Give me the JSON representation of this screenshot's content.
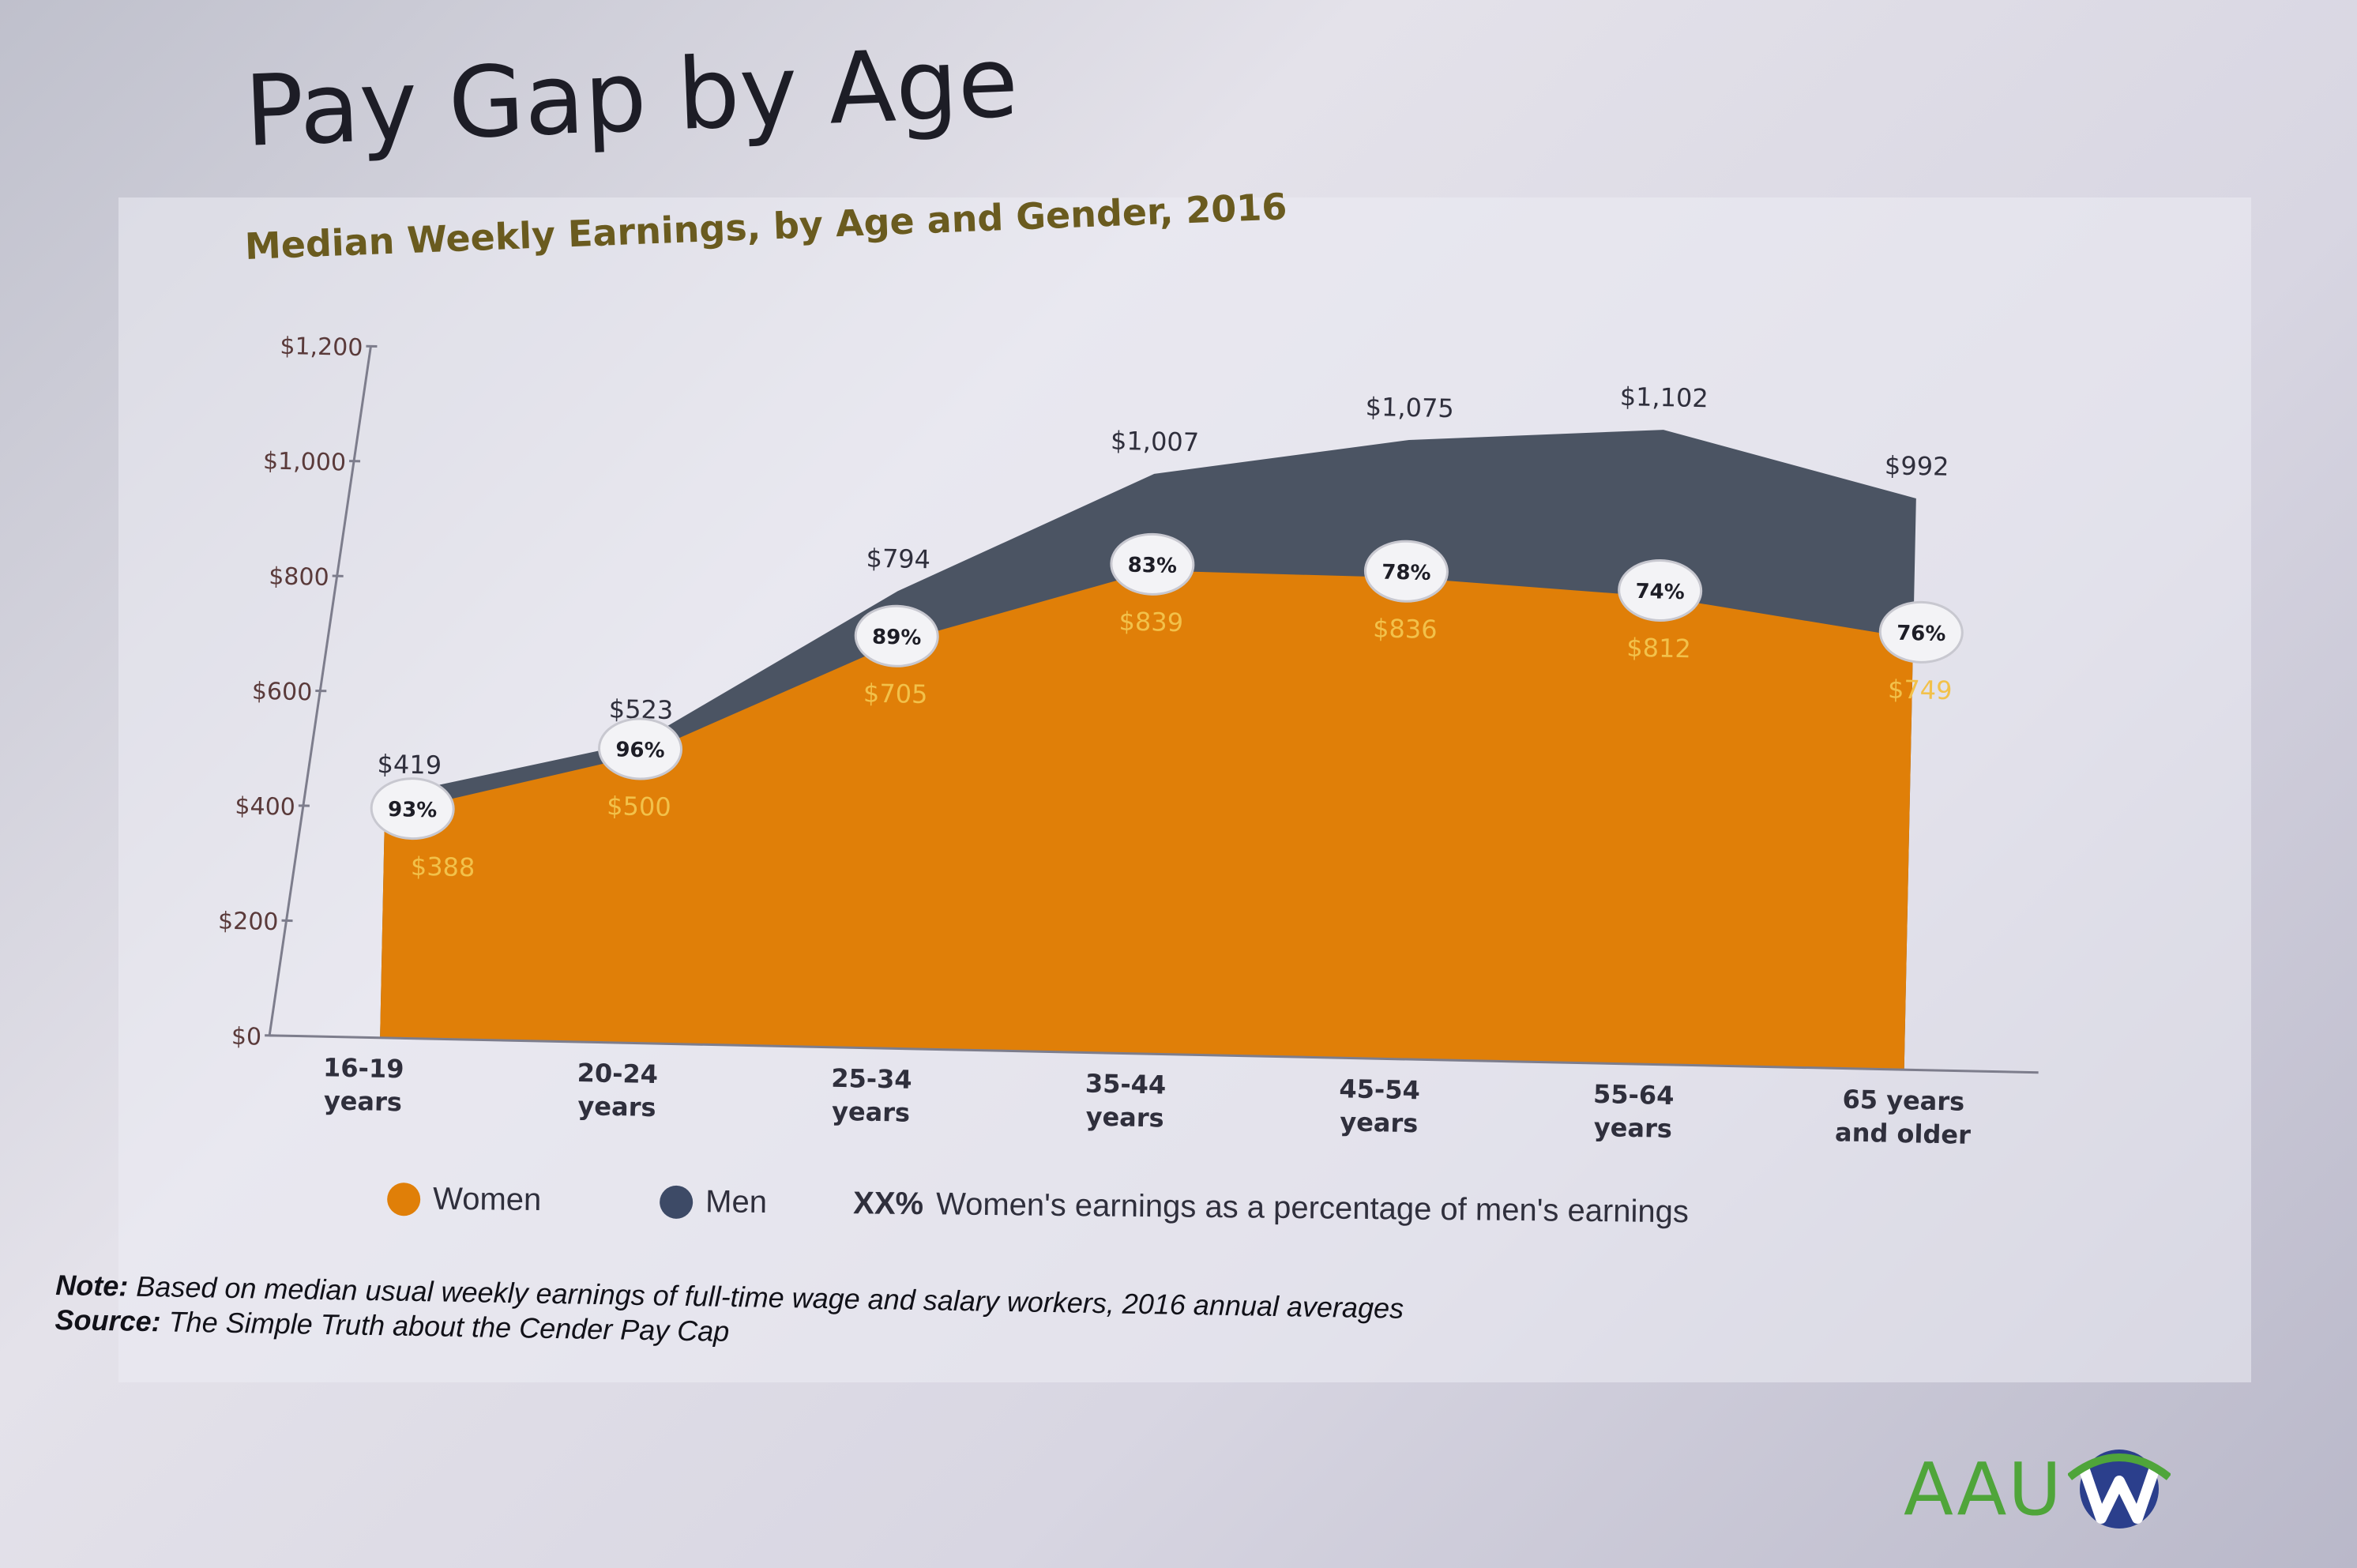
{
  "slide": {
    "title": "Pay Gap by Age",
    "logo_text": "AAU",
    "logo_icon": "aauw-w-logo-icon"
  },
  "legend": {
    "women_label": "Women",
    "men_label": "Men",
    "ratio_key": "XX%",
    "ratio_desc": "Women's earnings as a percentage of men's earnings"
  },
  "note": {
    "note_label": "Note:",
    "note_text": "Based on median usual weekly earnings of full-time wage and salary workers, 2016 annual averages",
    "source_label": "Source:",
    "source_text": "The Simple Truth about the Cender Pay Cap"
  },
  "chart_data": {
    "type": "area",
    "title": "Median Weekly Earnings, by Age and Gender, 2016",
    "xlabel": "",
    "ylabel": "",
    "ylim": [
      0,
      1200
    ],
    "yticks": [
      0,
      200,
      400,
      600,
      800,
      1000,
      1200
    ],
    "ytick_labels": [
      "$0",
      "$200",
      "$400",
      "$600",
      "$800",
      "$1,000",
      "$1,200"
    ],
    "categories": [
      [
        "16-19",
        "years"
      ],
      [
        "20-24",
        "years"
      ],
      [
        "25-34",
        "years"
      ],
      [
        "35-44",
        "years"
      ],
      [
        "45-54",
        "years"
      ],
      [
        "55-64",
        "years"
      ],
      [
        "65 years",
        "and older"
      ]
    ],
    "series": [
      {
        "name": "Men",
        "color": "#4b5463",
        "values": [
          419,
          523,
          794,
          1007,
          1075,
          1102,
          992
        ],
        "labels": [
          "$419",
          "$523",
          "$794",
          "$1,007",
          "$1,075",
          "$1,102",
          "$992"
        ]
      },
      {
        "name": "Women",
        "color": "#e07f08",
        "values": [
          388,
          500,
          705,
          839,
          836,
          812,
          749
        ],
        "labels": [
          "$388",
          "$500",
          "$705",
          "$839",
          "$836",
          "$812",
          "$749"
        ]
      }
    ],
    "ratio_labels": [
      "93%",
      "96%",
      "89%",
      "83%",
      "78%",
      "74%",
      "76%"
    ],
    "legend_position": "bottom",
    "grid": false
  }
}
